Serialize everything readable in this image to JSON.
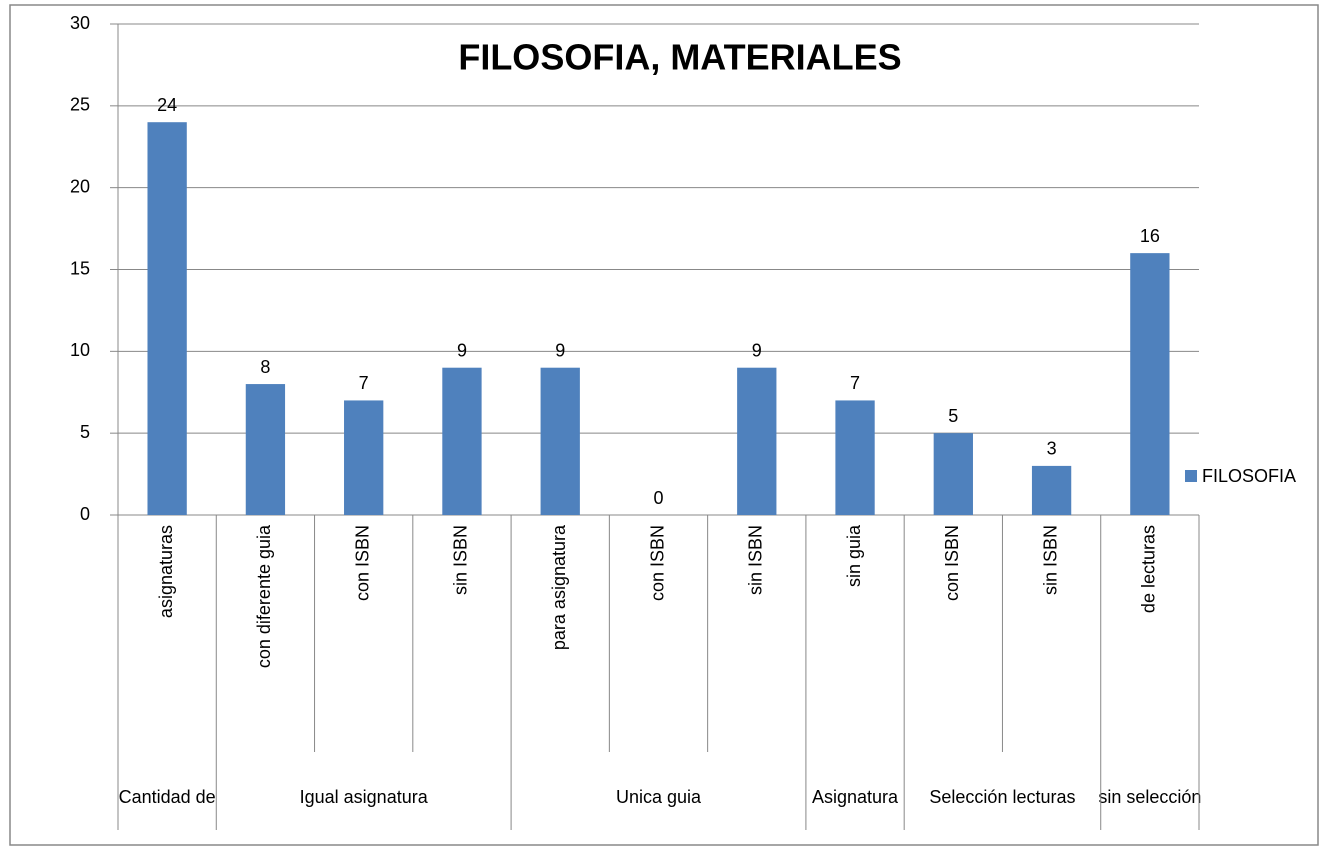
{
  "chart_data": {
    "type": "bar",
    "title": "FILOSOFIA, MATERIALES",
    "categories": [
      "asignaturas",
      "con diferente guia",
      "con ISBN",
      "sin ISBN",
      "para asignatura",
      "con ISBN",
      "sin ISBN",
      "sin guia",
      "con ISBN",
      "sin ISBN",
      "de lecturas"
    ],
    "groups": [
      {
        "label": "Cantidad de",
        "categories": 1
      },
      {
        "label": "Igual asignatura",
        "categories": 3
      },
      {
        "label": "Unica guia",
        "categories": 3
      },
      {
        "label": "Asignatura",
        "categories": 1
      },
      {
        "label": "Selección lecturas",
        "categories": 2
      },
      {
        "label": "sin selección",
        "categories": 1
      }
    ],
    "series": [
      {
        "name": "FILOSOFIA",
        "color": "#4f81bd",
        "values": [
          24,
          8,
          7,
          9,
          9,
          0,
          9,
          7,
          5,
          3,
          16
        ]
      }
    ],
    "ylim": [
      0,
      30
    ],
    "yticks": [
      0,
      5,
      10,
      15,
      20,
      25,
      30
    ],
    "grid": true,
    "legend": "right"
  }
}
